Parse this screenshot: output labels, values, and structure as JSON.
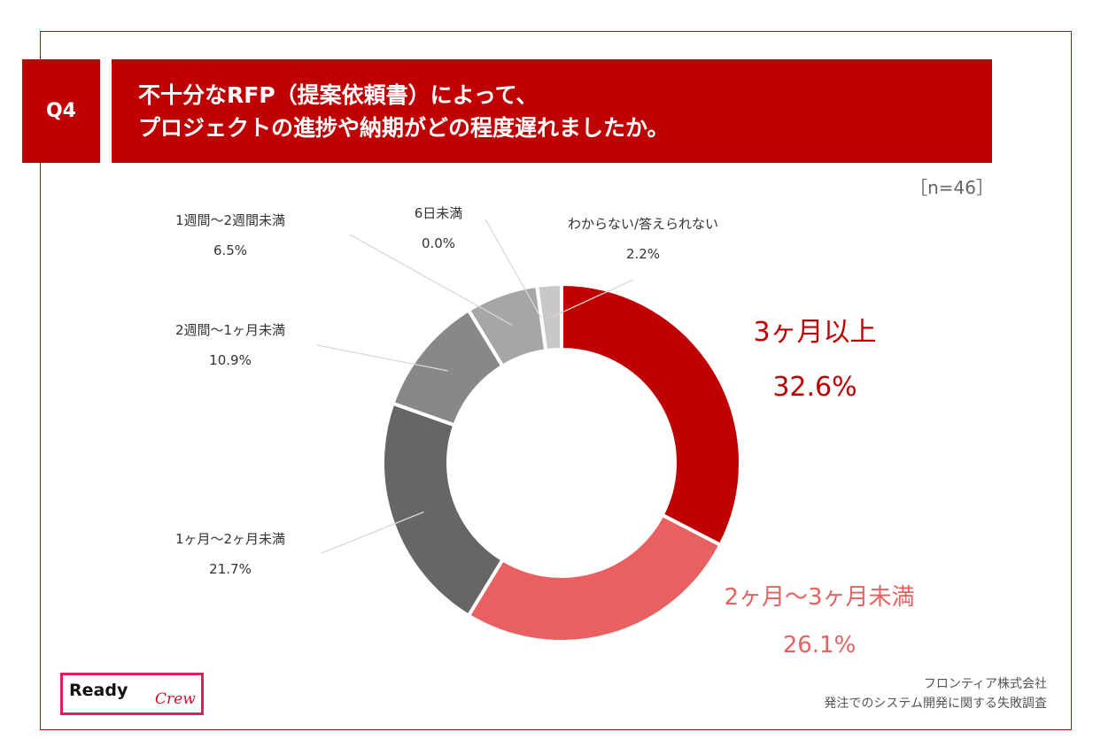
{
  "header": {
    "question_no": "Q4",
    "title_line1": "不十分なRFP（提案依頼書）によって、",
    "title_line2": "プロジェクトの進捗や納期がどの程度遅れましたか。"
  },
  "sample_size": "［n=46］",
  "colors": {
    "accent": "#c00000",
    "three_months_plus": "#c00000",
    "two_to_three_months": "#e86060",
    "one_to_two_months": "#666666",
    "two_weeks_to_one_month": "#888888",
    "one_to_two_weeks": "#a6a6a6",
    "under_six_days": "#bfbfbf",
    "unknown": "#c8c8c8"
  },
  "chart_data": {
    "type": "pie",
    "donut": true,
    "slices": [
      {
        "label": "3ヶ月以上",
        "value": 32.6,
        "display": "32.6%",
        "color": "#c00000"
      },
      {
        "label": "2ヶ月〜3ヶ月未満",
        "value": 26.1,
        "display": "26.1%",
        "color": "#e86060"
      },
      {
        "label": "1ヶ月〜2ヶ月未満",
        "value": 21.7,
        "display": "21.7%",
        "color": "#666666"
      },
      {
        "label": "2週間〜1ヶ月未満",
        "value": 10.9,
        "display": "10.9%",
        "color": "#888888"
      },
      {
        "label": "1週間〜2週間未満",
        "value": 6.5,
        "display": "6.5%",
        "color": "#a6a6a6"
      },
      {
        "label": "6日未満",
        "value": 0.0,
        "display": "0.0%",
        "color": "#bfbfbf"
      },
      {
        "label": "わからない/答えられない",
        "value": 2.2,
        "display": "2.2%",
        "color": "#c8c8c8"
      }
    ]
  },
  "footer": {
    "logo_word1": "Ready",
    "logo_word2": "Crew",
    "source_line1": "フロンティア株式会社",
    "source_line2": "発注でのシステム開発に関する失敗調査"
  }
}
